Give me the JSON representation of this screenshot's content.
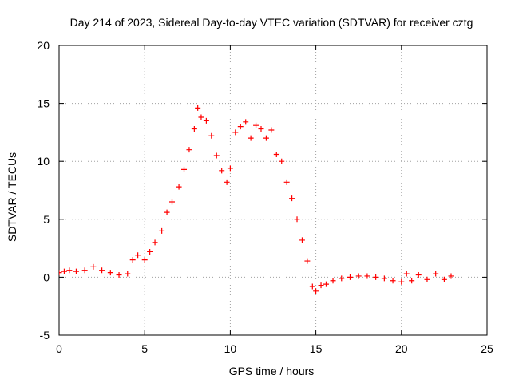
{
  "chart_data": {
    "type": "scatter",
    "title": "Day 214 of 2023, Sidereal Day-to-day VTEC variation (SDTVAR) for receiver cztg",
    "xlabel": "GPS time / hours",
    "ylabel": "SDTVAR / TECUs",
    "xlim": [
      0,
      25
    ],
    "ylim": [
      -5,
      20
    ],
    "x_ticks": [
      0,
      5,
      10,
      15,
      20,
      25
    ],
    "x_tick_labels": [
      "0",
      "5",
      "10",
      "15",
      "20",
      "25"
    ],
    "y_ticks": [
      -5,
      0,
      5,
      10,
      15,
      20
    ],
    "y_tick_labels": [
      "-5",
      "0",
      "5",
      "10",
      "15",
      "20"
    ],
    "grid": true,
    "marker": "plus",
    "series": [
      {
        "name": "cztg",
        "color": "#ff0000",
        "x": [
          0.0,
          0.3,
          0.6,
          1.0,
          1.5,
          2.0,
          2.5,
          3.0,
          3.5,
          4.0,
          4.3,
          4.6,
          5.0,
          5.3,
          5.6,
          6.0,
          6.3,
          6.6,
          7.0,
          7.3,
          7.6,
          7.9,
          8.1,
          8.3,
          8.6,
          8.9,
          9.2,
          9.5,
          9.8,
          10.0,
          10.3,
          10.6,
          10.9,
          11.2,
          11.5,
          11.8,
          12.1,
          12.4,
          12.7,
          13.0,
          13.3,
          13.6,
          13.9,
          14.2,
          14.5,
          14.8,
          15.0,
          15.3,
          15.6,
          16.0,
          16.5,
          17.0,
          17.5,
          18.0,
          18.5,
          19.0,
          19.5,
          20.0,
          20.3,
          20.6,
          21.0,
          21.5,
          22.0,
          22.5,
          22.9
        ],
        "y": [
          0.4,
          0.5,
          0.6,
          0.5,
          0.6,
          0.9,
          0.6,
          0.4,
          0.2,
          0.3,
          1.5,
          1.9,
          1.5,
          2.2,
          3.0,
          4.0,
          5.6,
          6.5,
          7.8,
          9.3,
          11.0,
          12.8,
          14.6,
          13.8,
          13.5,
          12.2,
          10.5,
          9.2,
          8.2,
          9.4,
          12.5,
          13.0,
          13.4,
          12.0,
          13.1,
          12.8,
          12.0,
          12.7,
          10.6,
          10.0,
          8.2,
          6.8,
          5.0,
          3.2,
          1.4,
          -0.8,
          -1.2,
          -0.7,
          -0.6,
          -0.3,
          -0.1,
          0.0,
          0.1,
          0.1,
          0.0,
          -0.1,
          -0.3,
          -0.4,
          0.3,
          -0.3,
          0.2,
          -0.2,
          0.3,
          -0.2,
          0.1
        ]
      }
    ]
  }
}
